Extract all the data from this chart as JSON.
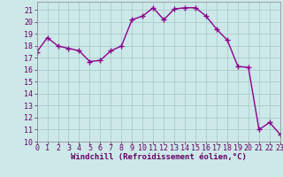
{
  "x": [
    0,
    1,
    2,
    3,
    4,
    5,
    6,
    7,
    8,
    9,
    10,
    11,
    12,
    13,
    14,
    15,
    16,
    17,
    18,
    19,
    20,
    21,
    22,
    23
  ],
  "y": [
    17.5,
    18.7,
    18.0,
    17.8,
    17.6,
    16.7,
    16.8,
    17.6,
    18.0,
    20.2,
    20.5,
    21.2,
    20.2,
    21.1,
    21.2,
    21.2,
    20.5,
    19.4,
    18.5,
    16.3,
    16.2,
    11.0,
    11.6,
    10.6
  ],
  "line_color": "#8B008B",
  "marker": "+",
  "markersize": 4,
  "linewidth": 1.0,
  "bg_color": "#cce8e8",
  "grid_color": "#b0d8d8",
  "xlabel": "Windchill (Refroidissement éolien,°C)",
  "xlabel_fontsize": 6.5,
  "tick_fontsize": 6.0,
  "ylim": [
    10,
    21.7
  ],
  "xlim": [
    0,
    23
  ],
  "yticks": [
    10,
    11,
    12,
    13,
    14,
    15,
    16,
    17,
    18,
    19,
    20,
    21
  ],
  "xticks": [
    0,
    1,
    2,
    3,
    4,
    5,
    6,
    7,
    8,
    9,
    10,
    11,
    12,
    13,
    14,
    15,
    16,
    17,
    18,
    19,
    20,
    21,
    22,
    23
  ]
}
